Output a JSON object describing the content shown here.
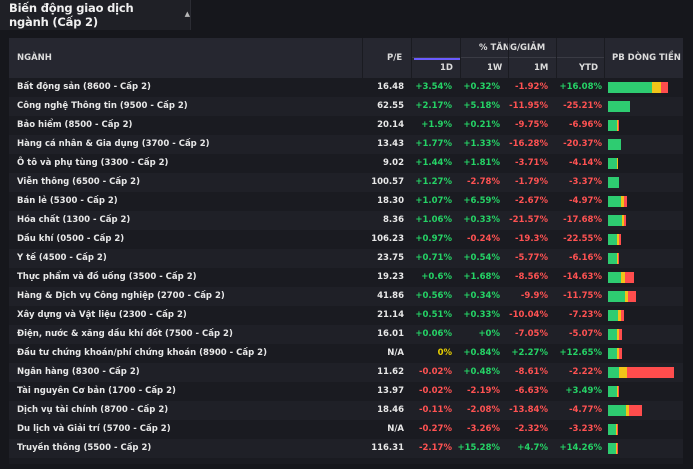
{
  "header": {
    "title": "Biến động giao dịch ngành (Cấp 2)",
    "dropdown_icon": "chevron-down-icon"
  },
  "table": {
    "columns": {
      "sector": "NGÀNH",
      "pe": "P/E",
      "change_group": "% TĂNG/GIẢM",
      "d1": "1D",
      "w1": "1W",
      "m1": "1M",
      "ytd": "YTD",
      "flow": "PB DÒNG TIỀN"
    },
    "rows": [
      {
        "name": "Bất động sản (8600 - Cấp 2)",
        "pe": "16.48",
        "d1": "+3.54%",
        "w1": "+0.32%",
        "m1": "-1.92%",
        "ytd": "+16.08%",
        "flow": [
          0.66,
          0.14,
          0.1
        ]
      },
      {
        "name": "Công nghệ Thông tin (9500 - Cấp 2)",
        "pe": "62.55",
        "d1": "+2.17%",
        "w1": "+5.18%",
        "m1": "-11.95%",
        "ytd": "-25.21%",
        "flow": [
          0.33,
          0,
          0
        ]
      },
      {
        "name": "Bảo hiểm (8500 - Cấp 2)",
        "pe": "20.14",
        "d1": "+1.9%",
        "w1": "+0.21%",
        "m1": "-9.75%",
        "ytd": "-6.96%",
        "flow": [
          0.13,
          0.02,
          0.02
        ]
      },
      {
        "name": "Hàng cá nhân & Gia dụng (3700 - Cấp 2)",
        "pe": "13.43",
        "d1": "+1.77%",
        "w1": "+1.33%",
        "m1": "-16.28%",
        "ytd": "-20.37%",
        "flow": [
          0.2,
          0,
          0
        ]
      },
      {
        "name": "Ô tô và phụ tùng (3300 - Cấp 2)",
        "pe": "9.02",
        "d1": "+1.44%",
        "w1": "+1.81%",
        "m1": "-3.71%",
        "ytd": "-4.14%",
        "flow": [
          0.13,
          0.02,
          0
        ]
      },
      {
        "name": "Viễn thông (6500 - Cấp 2)",
        "pe": "100.57",
        "d1": "+1.27%",
        "w1": "-2.78%",
        "m1": "-1.79%",
        "ytd": "-3.37%",
        "flow": [
          0.17,
          0,
          0
        ]
      },
      {
        "name": "Bán lẻ (5300 - Cấp 2)",
        "pe": "18.30",
        "d1": "+1.07%",
        "w1": "+6.59%",
        "m1": "-2.67%",
        "ytd": "-4.97%",
        "flow": [
          0.2,
          0.04,
          0.04
        ]
      },
      {
        "name": "Hóa chất (1300 - Cấp 2)",
        "pe": "8.36",
        "d1": "+1.06%",
        "w1": "+0.33%",
        "m1": "-21.57%",
        "ytd": "-17.68%",
        "flow": [
          0.21,
          0.03,
          0.03
        ]
      },
      {
        "name": "Dầu khí (0500 - Cấp 2)",
        "pe": "106.23",
        "d1": "+0.97%",
        "w1": "-0.24%",
        "m1": "-19.3%",
        "ytd": "-22.55%",
        "flow": [
          0.13,
          0.03,
          0.03
        ]
      },
      {
        "name": "Y tế (4500 - Cấp 2)",
        "pe": "23.75",
        "d1": "+0.71%",
        "w1": "+0.54%",
        "m1": "-5.77%",
        "ytd": "-6.16%",
        "flow": [
          0.13,
          0.02,
          0.02
        ]
      },
      {
        "name": "Thực phẩm và đồ uống (3500 - Cấp 2)",
        "pe": "19.23",
        "d1": "+0.6%",
        "w1": "+1.68%",
        "m1": "-8.56%",
        "ytd": "-14.63%",
        "flow": [
          0.2,
          0.06,
          0.14
        ]
      },
      {
        "name": "Hàng & Dịch vụ Công nghiệp (2700 - Cấp 2)",
        "pe": "41.86",
        "d1": "+0.56%",
        "w1": "+0.34%",
        "m1": "-9.9%",
        "ytd": "-11.75%",
        "flow": [
          0.25,
          0.05,
          0.12
        ]
      },
      {
        "name": "Xây dựng và Vật liệu (2300 - Cấp 2)",
        "pe": "21.14",
        "d1": "+0.51%",
        "w1": "+0.33%",
        "m1": "-10.04%",
        "ytd": "-7.23%",
        "flow": [
          0.15,
          0.04,
          0.04
        ]
      },
      {
        "name": "Điện, nước & xăng dầu khí đốt (7500 - Cấp 2)",
        "pe": "16.01",
        "d1": "+0.06%",
        "w1": "+0%",
        "m1": "-7.05%",
        "ytd": "-5.07%",
        "flow": [
          0.14,
          0.03,
          0.04
        ]
      },
      {
        "name": "Đầu tư chứng khoán/phí chứng khoán (8900 - Cấp 2)",
        "pe": "N/A",
        "d1": "0%",
        "w1": "+0.84%",
        "m1": "+2.27%",
        "ytd": "+12.65%",
        "flow": [
          0.14,
          0.03,
          0.04
        ]
      },
      {
        "name": "Ngân hàng (8300 - Cấp 2)",
        "pe": "11.62",
        "d1": "-0.02%",
        "w1": "+0.48%",
        "m1": "-8.61%",
        "ytd": "-2.22%",
        "flow": [
          0.17,
          0.12,
          0.71
        ]
      },
      {
        "name": "Tài nguyên Cơ bản (1700 - Cấp 2)",
        "pe": "13.97",
        "d1": "-0.02%",
        "w1": "-2.19%",
        "m1": "-6.63%",
        "ytd": "+3.49%",
        "flow": [
          0.13,
          0.02,
          0.02
        ]
      },
      {
        "name": "Dịch vụ tài chính (8700 - Cấp 2)",
        "pe": "18.46",
        "d1": "-0.11%",
        "w1": "-2.08%",
        "m1": "-13.84%",
        "ytd": "-4.77%",
        "flow": [
          0.28,
          0.05,
          0.19
        ]
      },
      {
        "name": "Du lịch và Giải trí (5700 - Cấp 2)",
        "pe": "N/A",
        "d1": "-0.27%",
        "w1": "-3.26%",
        "m1": "-2.32%",
        "ytd": "-3.23%",
        "flow": [
          0.12,
          0.02,
          0.02
        ]
      },
      {
        "name": "Truyền thông (5500 - Cấp 2)",
        "pe": "116.31",
        "d1": "-2.17%",
        "w1": "+15.28%",
        "m1": "+4.7%",
        "ytd": "+14.26%",
        "flow": [
          0.12,
          0.02,
          0.02
        ]
      }
    ]
  },
  "colors": {
    "up": "#25d366",
    "down": "#ff5252",
    "flat": "#e8d000",
    "flow_green": "#2ecc71",
    "flow_yellow": "#f0c419",
    "flow_red": "#ff4d4d",
    "active_underline": "#6b5cff"
  }
}
